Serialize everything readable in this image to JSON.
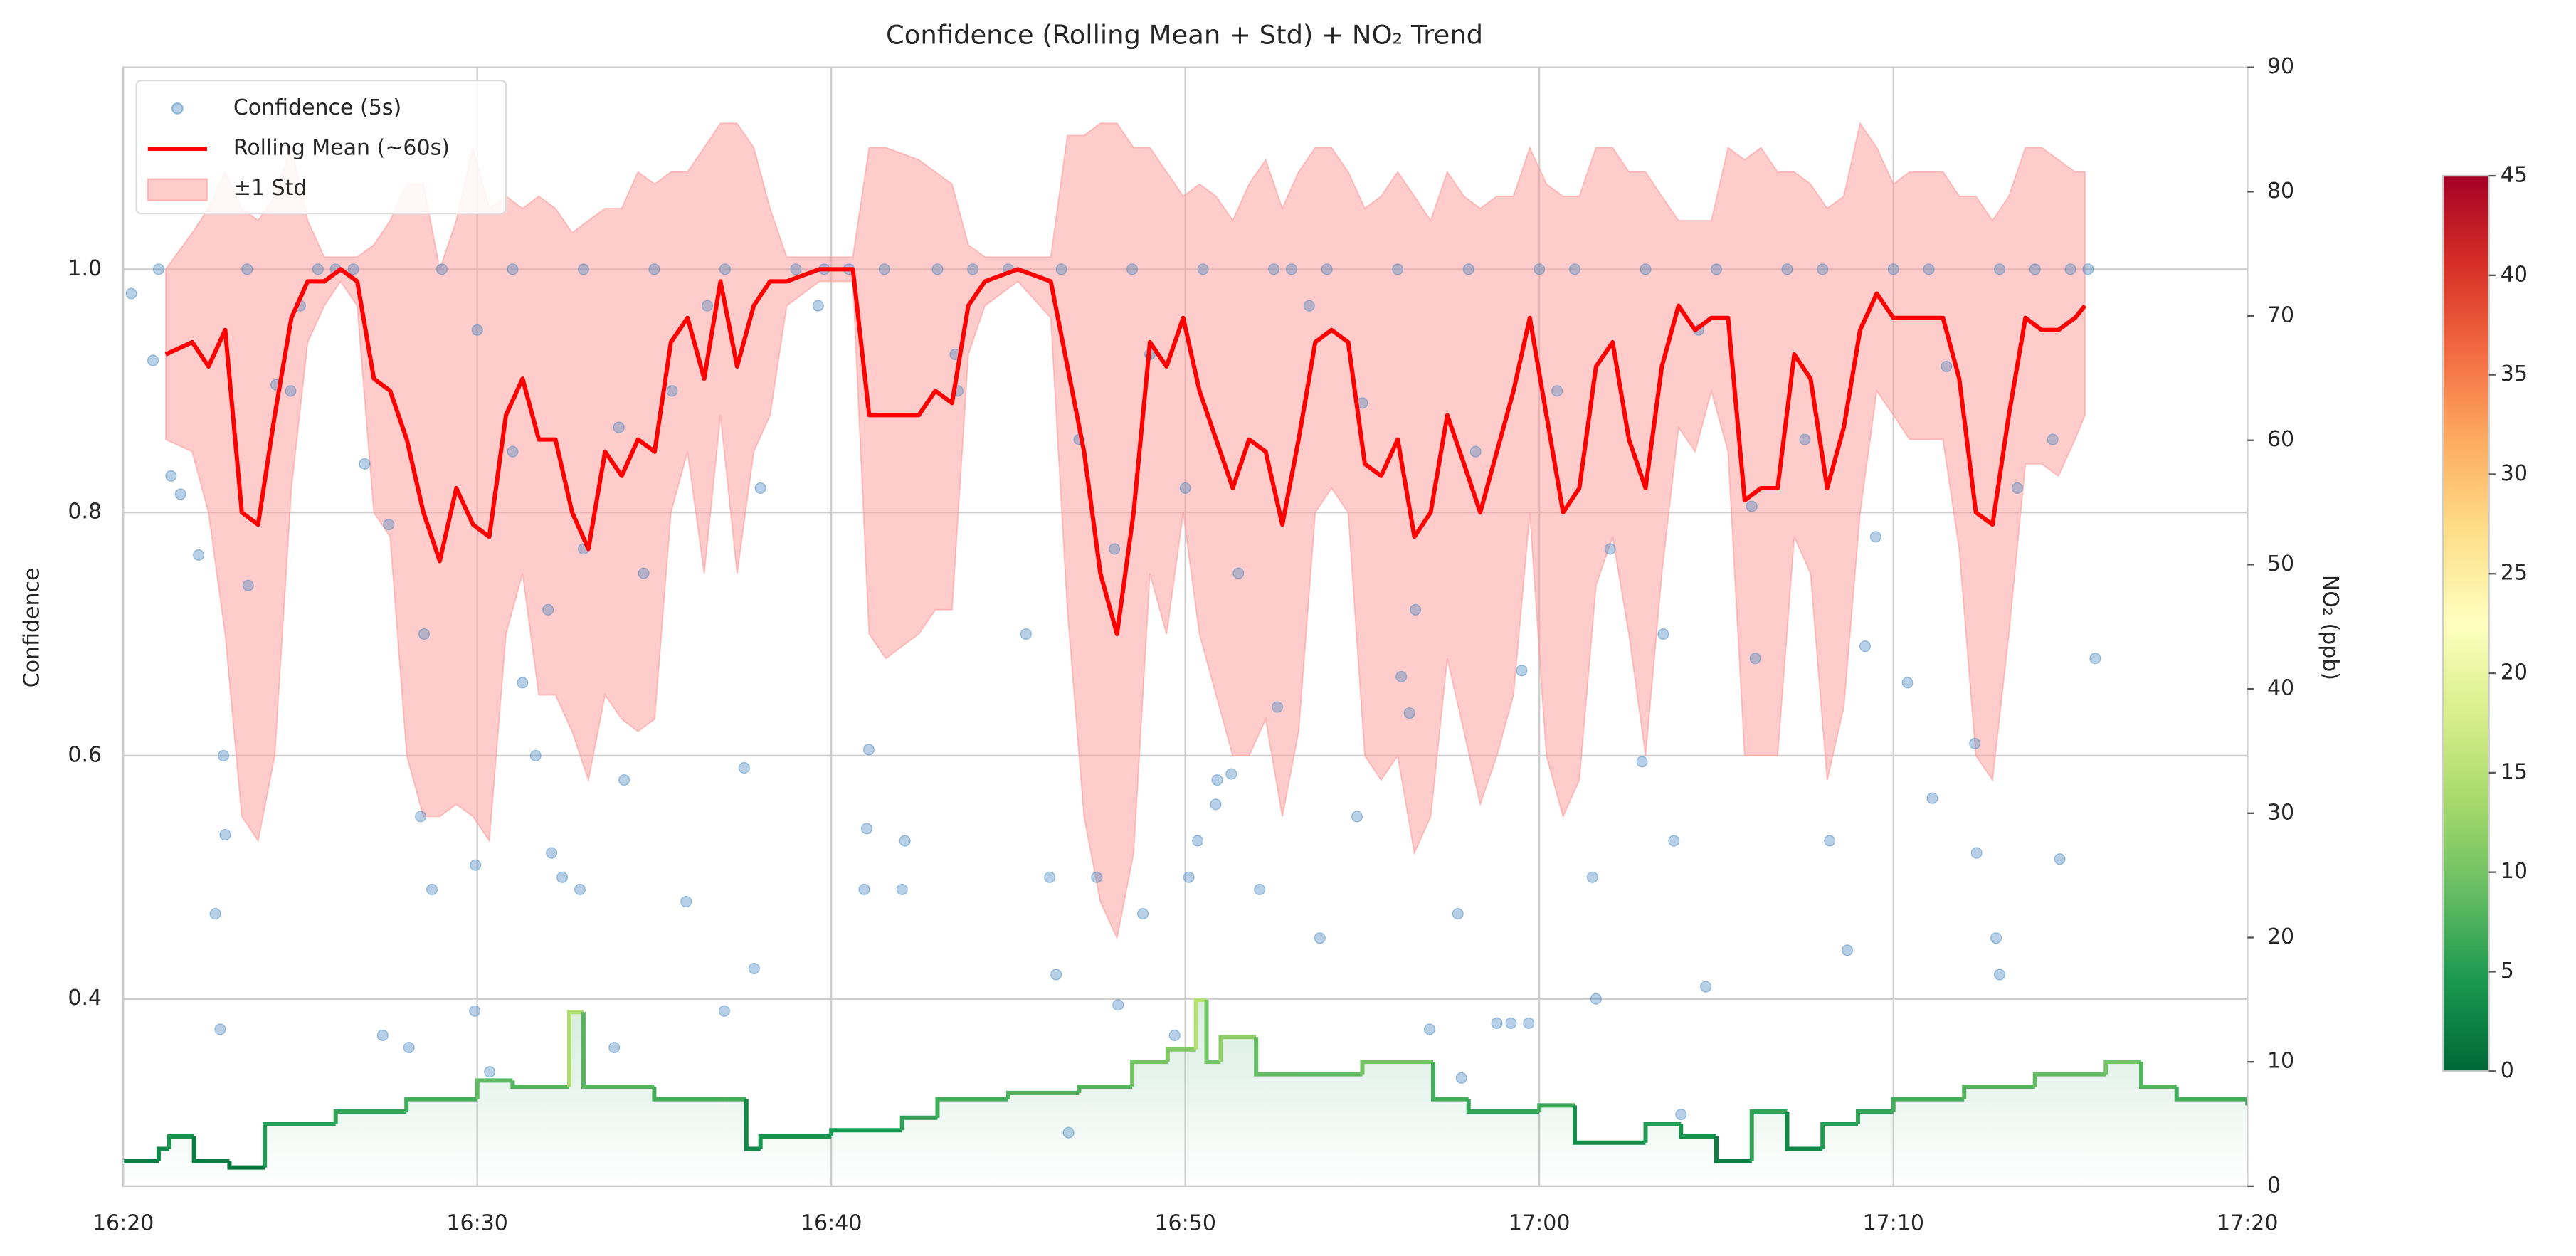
{
  "chart_data": {
    "type": "combo",
    "title": "Confidence (Rolling Mean + Std) + NO₂ Trend",
    "y_label": "Confidence",
    "y2_label": "NO₂ (ppb)",
    "grid": true,
    "legend": "upper left",
    "xlim": [
      0,
      60
    ],
    "xticks": [
      {
        "value": 0,
        "label": "16:20"
      },
      {
        "value": 10,
        "label": "16:30"
      },
      {
        "value": 20,
        "label": "16:40"
      },
      {
        "value": 30,
        "label": "16:50"
      },
      {
        "value": 40,
        "label": "17:00"
      },
      {
        "value": 50,
        "label": "17:10"
      },
      {
        "value": 60,
        "label": "17:20"
      }
    ],
    "ylim": [
      0.246,
      1.166
    ],
    "yticks": [
      0.4,
      0.6,
      0.8,
      {
        "value": 1,
        "label": "1.0"
      }
    ],
    "y2lim": [
      0,
      90
    ],
    "y2ticks": [
      0,
      10,
      20,
      30,
      40,
      50,
      60,
      70,
      80,
      90
    ],
    "series": [
      {
        "name": "Confidence (5s)",
        "type": "scatter",
        "color": "#4a8ac4",
        "x": [
          0.23,
          0.84,
          1.35,
          1.62,
          2.13,
          2.6,
          2.74,
          2.83,
          2.88,
          3.53,
          4.32,
          4.73,
          6.82,
          7.33,
          8.07,
          8.4,
          8.72,
          9.93,
          9.95,
          10.35,
          11.28,
          11.65,
          12.1,
          12.4,
          12.9,
          13.87,
          14.15,
          14.7,
          15.9,
          16.98,
          17.54,
          17.82,
          19.63,
          20.93,
          21.0,
          21.06,
          22.0,
          22.08,
          23.57,
          26.17,
          26.35,
          26.7,
          27.5,
          28.1,
          28.8,
          29.7,
          30.1,
          30.35,
          30.86,
          30.9,
          31.3,
          32.1,
          32.6,
          33.8,
          34.85,
          36.1,
          36.33,
          36.9,
          37.7,
          37.8,
          38.8,
          39.2,
          39.7,
          41.5,
          41.6,
          42.9,
          43.8,
          44.0,
          44.7,
          46.0,
          46.1,
          48.2,
          48.7,
          49.2,
          50.4,
          51.1,
          52.3,
          52.35,
          52.9,
          53.0,
          54.7,
          55.7,
          1.0,
          3.5,
          5.5,
          6.0,
          6.5,
          9.0,
          11.0,
          13.0,
          15.0,
          17.0,
          19.0,
          19.8,
          20.5,
          21.5,
          23.0,
          24.0,
          25.0,
          26.5,
          28.5,
          30.5,
          32.5,
          33.0,
          34.0,
          36.0,
          38.0,
          40.0,
          41.0,
          43.0,
          45.0,
          47.0,
          48.0,
          50.0,
          51.0,
          53.0,
          54.0,
          55.0,
          55.5,
          5.0,
          7.5,
          8.5,
          10.0,
          11.0,
          12.0,
          13.0,
          14.0,
          15.5,
          16.5,
          18.0,
          23.5,
          25.5,
          27.0,
          28.0,
          29.0,
          30.0,
          31.5,
          33.5,
          35.0,
          36.5,
          38.2,
          39.5,
          40.5,
          42.0,
          43.5,
          44.5,
          47.5,
          49.5,
          51.5,
          53.5,
          54.5
        ],
        "values": [
          0.98,
          0.925,
          0.83,
          0.815,
          0.765,
          0.47,
          0.375,
          0.6,
          0.535,
          0.74,
          0.905,
          0.9,
          0.84,
          0.37,
          0.36,
          0.55,
          0.49,
          0.39,
          0.51,
          0.34,
          0.66,
          0.6,
          0.52,
          0.5,
          0.49,
          0.36,
          0.58,
          0.75,
          0.48,
          0.39,
          0.59,
          0.425,
          0.97,
          0.49,
          0.54,
          0.605,
          0.49,
          0.53,
          0.9,
          0.5,
          0.42,
          0.29,
          0.5,
          0.395,
          0.47,
          0.37,
          0.5,
          0.53,
          0.56,
          0.58,
          0.585,
          0.49,
          0.64,
          0.45,
          0.55,
          0.665,
          0.635,
          0.375,
          0.47,
          0.335,
          0.38,
          0.38,
          0.38,
          0.5,
          0.4,
          0.595,
          0.53,
          0.305,
          0.41,
          0.805,
          0.68,
          0.53,
          0.44,
          0.69,
          0.66,
          0.565,
          0.61,
          0.52,
          0.45,
          0.42,
          0.515,
          0.68,
          1.0,
          1.0,
          1.0,
          1.0,
          1.0,
          1.0,
          1.0,
          1.0,
          1.0,
          1.0,
          1.0,
          1.0,
          1.0,
          1.0,
          1.0,
          1.0,
          1.0,
          1.0,
          1.0,
          1.0,
          1.0,
          1.0,
          1.0,
          1.0,
          1.0,
          1.0,
          1.0,
          1.0,
          1.0,
          1.0,
          1.0,
          1.0,
          1.0,
          1.0,
          1.0,
          1.0,
          1.0,
          0.97,
          0.79,
          0.7,
          0.95,
          0.85,
          0.72,
          0.77,
          0.87,
          0.9,
          0.97,
          0.82,
          0.93,
          0.7,
          0.86,
          0.77,
          0.93,
          0.82,
          0.75,
          0.97,
          0.89,
          0.72,
          0.85,
          0.67,
          0.9,
          0.77,
          0.7,
          0.95,
          0.86,
          0.78,
          0.92,
          0.82,
          0.86
        ]
      },
      {
        "name": "Rolling Mean (~60s)",
        "type": "line",
        "color": "#ff0000",
        "x": [
          1.2,
          1.95,
          2.41,
          2.88,
          3.35,
          3.81,
          4.28,
          4.75,
          5.21,
          5.68,
          6.14,
          6.61,
          7.08,
          7.54,
          8.01,
          8.48,
          8.94,
          9.41,
          9.88,
          10.34,
          10.81,
          11.28,
          11.74,
          12.21,
          12.68,
          13.14,
          13.61,
          14.08,
          14.54,
          15.01,
          15.47,
          15.94,
          16.41,
          16.87,
          17.34,
          17.81,
          18.27,
          18.74,
          19.67,
          20.61,
          21.07,
          21.54,
          22.47,
          22.94,
          23.41,
          23.87,
          24.34,
          25.27,
          26.2,
          26.67,
          27.14,
          27.6,
          28.07,
          28.54,
          29.0,
          29.47,
          29.94,
          30.4,
          30.87,
          31.34,
          31.8,
          32.27,
          32.74,
          33.2,
          33.67,
          34.13,
          34.6,
          35.07,
          35.53,
          36.0,
          36.47,
          36.93,
          37.4,
          37.87,
          38.33,
          38.8,
          39.27,
          39.73,
          40.2,
          40.67,
          41.13,
          41.6,
          42.07,
          42.53,
          43.0,
          43.46,
          43.93,
          44.4,
          44.86,
          45.33,
          45.8,
          46.26,
          46.73,
          47.2,
          47.66,
          48.13,
          48.6,
          49.06,
          49.53,
          50.0,
          50.46,
          51.4,
          51.86,
          52.33,
          52.8,
          53.26,
          53.73,
          54.19,
          54.66,
          55.13,
          55.41
        ],
        "values": [
          0.93,
          0.94,
          0.92,
          0.95,
          0.8,
          0.79,
          0.88,
          0.96,
          0.99,
          0.99,
          1.0,
          0.99,
          0.91,
          0.9,
          0.86,
          0.8,
          0.76,
          0.82,
          0.79,
          0.78,
          0.88,
          0.91,
          0.86,
          0.86,
          0.8,
          0.77,
          0.85,
          0.83,
          0.86,
          0.85,
          0.94,
          0.96,
          0.91,
          0.99,
          0.92,
          0.97,
          0.99,
          0.99,
          1.0,
          1.0,
          0.88,
          0.88,
          0.88,
          0.9,
          0.89,
          0.97,
          0.99,
          1.0,
          0.99,
          0.92,
          0.85,
          0.75,
          0.7,
          0.8,
          0.94,
          0.92,
          0.96,
          0.9,
          0.86,
          0.82,
          0.86,
          0.85,
          0.79,
          0.86,
          0.94,
          0.95,
          0.94,
          0.84,
          0.83,
          0.86,
          0.78,
          0.8,
          0.88,
          0.84,
          0.8,
          0.85,
          0.9,
          0.96,
          0.88,
          0.8,
          0.82,
          0.92,
          0.94,
          0.86,
          0.82,
          0.92,
          0.97,
          0.95,
          0.96,
          0.96,
          0.81,
          0.82,
          0.82,
          0.93,
          0.91,
          0.82,
          0.87,
          0.95,
          0.98,
          0.96,
          0.96,
          0.96,
          0.91,
          0.8,
          0.79,
          0.88,
          0.96,
          0.95,
          0.95,
          0.96,
          0.97
        ]
      },
      {
        "name": "±1 Std",
        "type": "band",
        "color": "#ff9999",
        "x": [
          1.2,
          1.95,
          2.41,
          2.88,
          3.35,
          3.81,
          4.28,
          4.75,
          5.21,
          5.68,
          6.14,
          6.61,
          7.08,
          7.54,
          8.01,
          8.48,
          8.94,
          9.41,
          9.88,
          10.34,
          10.81,
          11.28,
          11.74,
          12.21,
          12.68,
          13.14,
          13.61,
          14.08,
          14.54,
          15.01,
          15.47,
          15.94,
          16.41,
          16.87,
          17.34,
          17.81,
          18.27,
          18.74,
          19.67,
          20.61,
          21.07,
          21.54,
          22.47,
          22.94,
          23.41,
          23.87,
          24.34,
          25.27,
          26.2,
          26.67,
          27.14,
          27.6,
          28.07,
          28.54,
          29.0,
          29.47,
          29.94,
          30.4,
          30.87,
          31.34,
          31.8,
          32.27,
          32.74,
          33.2,
          33.67,
          34.13,
          34.6,
          35.07,
          35.53,
          36.0,
          36.47,
          36.93,
          37.4,
          37.87,
          38.33,
          38.8,
          39.27,
          39.73,
          40.2,
          40.67,
          41.13,
          41.6,
          42.07,
          42.53,
          43.0,
          43.46,
          43.93,
          44.4,
          44.86,
          45.33,
          45.8,
          46.26,
          46.73,
          47.2,
          47.66,
          48.13,
          48.6,
          49.06,
          49.53,
          50.0,
          50.46,
          51.4,
          51.86,
          52.33,
          52.8,
          53.26,
          53.73,
          54.19,
          54.66,
          55.13,
          55.41
        ],
        "lower": [
          0.86,
          0.85,
          0.8,
          0.7,
          0.55,
          0.53,
          0.6,
          0.82,
          0.94,
          0.97,
          0.99,
          0.97,
          0.8,
          0.78,
          0.6,
          0.55,
          0.55,
          0.56,
          0.55,
          0.53,
          0.7,
          0.75,
          0.65,
          0.65,
          0.62,
          0.58,
          0.65,
          0.63,
          0.62,
          0.63,
          0.8,
          0.85,
          0.75,
          0.88,
          0.75,
          0.85,
          0.88,
          0.97,
          0.99,
          0.99,
          0.7,
          0.68,
          0.7,
          0.72,
          0.72,
          0.93,
          0.97,
          0.99,
          0.96,
          0.72,
          0.55,
          0.48,
          0.45,
          0.52,
          0.75,
          0.7,
          0.8,
          0.7,
          0.65,
          0.6,
          0.6,
          0.63,
          0.55,
          0.62,
          0.8,
          0.82,
          0.8,
          0.6,
          0.58,
          0.6,
          0.52,
          0.55,
          0.68,
          0.62,
          0.56,
          0.6,
          0.65,
          0.8,
          0.6,
          0.55,
          0.58,
          0.74,
          0.78,
          0.7,
          0.6,
          0.75,
          0.87,
          0.85,
          0.9,
          0.85,
          0.6,
          0.6,
          0.6,
          0.78,
          0.75,
          0.58,
          0.64,
          0.8,
          0.9,
          0.88,
          0.86,
          0.86,
          0.77,
          0.6,
          0.58,
          0.7,
          0.84,
          0.84,
          0.83,
          0.86,
          0.88
        ],
        "upper": [
          1.0,
          1.03,
          1.05,
          1.08,
          1.05,
          1.04,
          1.06,
          1.1,
          1.04,
          1.01,
          1.01,
          1.01,
          1.02,
          1.04,
          1.07,
          1.07,
          1.0,
          1.04,
          1.1,
          1.05,
          1.06,
          1.05,
          1.06,
          1.05,
          1.03,
          1.04,
          1.05,
          1.05,
          1.08,
          1.07,
          1.08,
          1.08,
          1.1,
          1.12,
          1.12,
          1.1,
          1.05,
          1.01,
          1.01,
          1.01,
          1.1,
          1.1,
          1.09,
          1.08,
          1.07,
          1.02,
          1.01,
          1.01,
          1.01,
          1.11,
          1.11,
          1.12,
          1.12,
          1.1,
          1.1,
          1.08,
          1.06,
          1.07,
          1.06,
          1.04,
          1.07,
          1.09,
          1.05,
          1.08,
          1.1,
          1.1,
          1.08,
          1.05,
          1.06,
          1.08,
          1.06,
          1.04,
          1.08,
          1.06,
          1.05,
          1.06,
          1.06,
          1.1,
          1.07,
          1.06,
          1.06,
          1.1,
          1.1,
          1.08,
          1.08,
          1.06,
          1.04,
          1.04,
          1.04,
          1.1,
          1.09,
          1.1,
          1.08,
          1.08,
          1.07,
          1.05,
          1.06,
          1.12,
          1.1,
          1.07,
          1.08,
          1.08,
          1.06,
          1.06,
          1.04,
          1.06,
          1.1,
          1.1,
          1.09,
          1.08,
          1.08
        ]
      },
      {
        "type": "step",
        "axis": "y2",
        "x": [
          0,
          1.0,
          1.3,
          2,
          3,
          4,
          6,
          8,
          10,
          11,
          12.5,
          12.6,
          13,
          15,
          17,
          17.6,
          18,
          20,
          22,
          23,
          25,
          27,
          28.5,
          29.5,
          30.3,
          30.6,
          31,
          32,
          33,
          35,
          37,
          38,
          40,
          41,
          43,
          44,
          45,
          46,
          47,
          48,
          49,
          50,
          52,
          54,
          56,
          57,
          58,
          60
        ],
        "values": [
          2,
          3,
          4,
          2,
          1.5,
          5,
          6,
          7,
          8.5,
          8,
          8,
          14,
          8,
          7,
          7,
          3,
          4,
          4.5,
          5.5,
          7,
          7.5,
          8,
          10,
          11,
          15,
          10,
          12,
          9,
          9,
          10,
          7,
          6,
          6.5,
          3.5,
          5,
          4,
          2,
          6,
          3,
          5,
          6,
          7,
          8,
          9,
          10,
          8,
          7,
          6.5
        ]
      }
    ],
    "colorbar": {
      "clim": [
        0,
        45
      ],
      "ticks": [
        0,
        5,
        10,
        15,
        20,
        25,
        30,
        35,
        40,
        45
      ],
      "colors": [
        "#006837",
        "#1a9850",
        "#66bd63",
        "#a6d96a",
        "#d9ef8b",
        "#ffffbf",
        "#fee08b",
        "#fdae61",
        "#f46d43",
        "#d73027",
        "#a50026"
      ]
    }
  }
}
